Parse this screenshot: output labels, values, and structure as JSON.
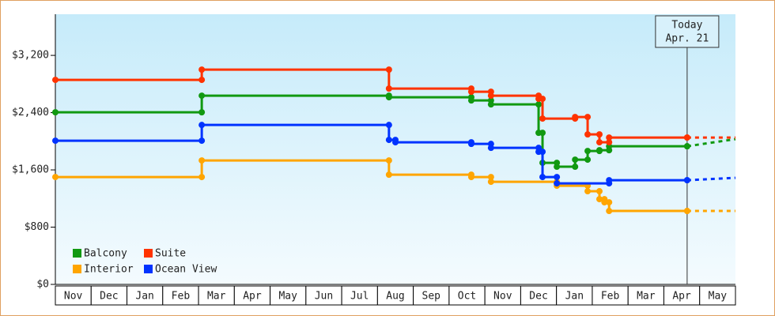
{
  "chart_data": {
    "type": "step-line",
    "xlim": [
      0,
      19
    ],
    "ylim": [
      0,
      3775
    ],
    "yticks": [
      {
        "value": 0,
        "label": "$0"
      },
      {
        "value": 800,
        "label": "$800"
      },
      {
        "value": 1600,
        "label": "$1,600"
      },
      {
        "value": 2400,
        "label": "$2,400"
      },
      {
        "value": 3200,
        "label": "$3,200"
      }
    ],
    "xticks": [
      {
        "value": 0.5,
        "label": "Nov"
      },
      {
        "value": 1.5,
        "label": "Dec"
      },
      {
        "value": 2.5,
        "label": "Jan"
      },
      {
        "value": 3.5,
        "label": "Feb"
      },
      {
        "value": 4.5,
        "label": "Mar"
      },
      {
        "value": 5.5,
        "label": "Apr"
      },
      {
        "value": 6.5,
        "label": "May"
      },
      {
        "value": 7.5,
        "label": "Jun"
      },
      {
        "value": 8.5,
        "label": "Jul"
      },
      {
        "value": 9.5,
        "label": "Aug"
      },
      {
        "value": 10.5,
        "label": "Sep"
      },
      {
        "value": 11.5,
        "label": "Oct"
      },
      {
        "value": 12.5,
        "label": "Nov"
      },
      {
        "value": 13.5,
        "label": "Dec"
      },
      {
        "value": 14.5,
        "label": "Jan"
      },
      {
        "value": 15.5,
        "label": "Feb"
      },
      {
        "value": 16.5,
        "label": "Mar"
      },
      {
        "value": 17.5,
        "label": "Apr"
      },
      {
        "value": 18.5,
        "label": "May"
      }
    ],
    "today": {
      "x": 17.65,
      "label": "Today",
      "date": "Apr. 21"
    },
    "legend": "bottom-left",
    "series": [
      {
        "name": "Balcony",
        "color": "#119911",
        "x": [
          0,
          4.09,
          9.32,
          11.62,
          12.17,
          13.5,
          13.61,
          14.01,
          14.52,
          14.87,
          15.2,
          15.47,
          17.65
        ],
        "values": [
          2405,
          2637,
          2615,
          2570,
          2515,
          2118,
          1699,
          1644,
          1743,
          1864,
          1875,
          1930,
          1930
        ],
        "forecast": 2030
      },
      {
        "name": "Suite",
        "color": "#ff3300",
        "x": [
          0,
          4.09,
          9.32,
          11.62,
          12.17,
          13.5,
          13.61,
          14.52,
          14.87,
          15.2,
          15.47,
          17.65
        ],
        "values": [
          2858,
          3001,
          2736,
          2692,
          2637,
          2593,
          2317,
          2339,
          2096,
          1986,
          2052,
          2052
        ],
        "forecast": 2052
      },
      {
        "name": "Interior",
        "color": "#ffa500",
        "x": [
          0,
          4.09,
          9.32,
          11.62,
          12.17,
          14.01,
          14.87,
          15.2,
          15.34,
          15.47,
          17.65
        ],
        "values": [
          1500,
          1732,
          1533,
          1500,
          1434,
          1379,
          1302,
          1191,
          1147,
          1026,
          1026
        ],
        "forecast": 1026
      },
      {
        "name": "Ocean View",
        "color": "#0033ff",
        "x": [
          0,
          4.09,
          9.32,
          9.5,
          11.62,
          12.17,
          13.5,
          13.61,
          14.01,
          15.47,
          17.65
        ],
        "values": [
          2008,
          2228,
          2019,
          1986,
          1963,
          1908,
          1853,
          1500,
          1412,
          1456,
          1456
        ],
        "forecast": 1489
      }
    ]
  }
}
